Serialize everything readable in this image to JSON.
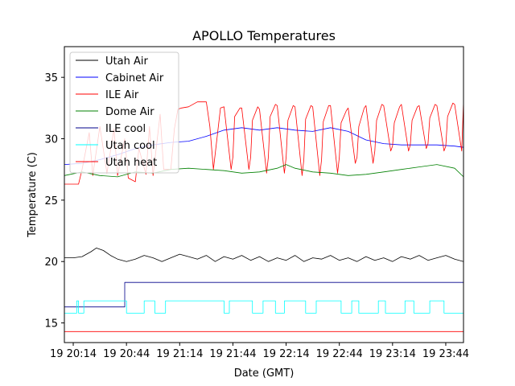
{
  "chart_data": {
    "type": "line",
    "title": "APOLLO Temperatures",
    "xlabel": "Date (GMT)",
    "ylabel": "Temperature (C)",
    "xlim": [
      0,
      225
    ],
    "ylim": [
      13.4,
      37.5
    ],
    "x_ticks": [
      {
        "value": 5,
        "label": "19 20:14"
      },
      {
        "value": 35,
        "label": "19 20:44"
      },
      {
        "value": 65,
        "label": "19 21:14"
      },
      {
        "value": 95,
        "label": "19 21:44"
      },
      {
        "value": 125,
        "label": "19 22:14"
      },
      {
        "value": 155,
        "label": "19 22:44"
      },
      {
        "value": 185,
        "label": "19 23:14"
      },
      {
        "value": 215,
        "label": "19 23:44"
      }
    ],
    "y_ticks": [
      {
        "value": 15,
        "label": "15"
      },
      {
        "value": 20,
        "label": "20"
      },
      {
        "value": 25,
        "label": "25"
      },
      {
        "value": 30,
        "label": "30"
      },
      {
        "value": 35,
        "label": "35"
      }
    ],
    "legend_position": "top-left",
    "series": [
      {
        "name": "Utah Air",
        "color": "#000000",
        "x": [
          0,
          5,
          10,
          15,
          18,
          22,
          26,
          30,
          35,
          40,
          45,
          50,
          55,
          60,
          65,
          70,
          75,
          80,
          85,
          90,
          95,
          100,
          105,
          110,
          115,
          120,
          125,
          130,
          135,
          140,
          145,
          150,
          155,
          160,
          165,
          170,
          175,
          180,
          185,
          190,
          195,
          200,
          205,
          210,
          215,
          220,
          225
        ],
        "values": [
          20.3,
          20.3,
          20.4,
          20.8,
          21.1,
          20.9,
          20.5,
          20.2,
          20.0,
          20.2,
          20.5,
          20.3,
          20.0,
          20.3,
          20.6,
          20.4,
          20.2,
          20.5,
          20.0,
          20.4,
          20.2,
          20.5,
          20.1,
          20.4,
          20.0,
          20.3,
          20.1,
          20.5,
          20.0,
          20.3,
          20.2,
          20.5,
          20.1,
          20.3,
          20.0,
          20.4,
          20.1,
          20.3,
          20.0,
          20.4,
          20.2,
          20.5,
          20.1,
          20.3,
          20.5,
          20.2,
          20.0
        ]
      },
      {
        "name": "Cabinet Air",
        "color": "#0000ff",
        "x": [
          0,
          10,
          20,
          30,
          40,
          50,
          60,
          70,
          80,
          90,
          100,
          110,
          120,
          130,
          140,
          150,
          160,
          170,
          180,
          190,
          200,
          210,
          220,
          225
        ],
        "values": [
          27.9,
          28.0,
          28.3,
          28.7,
          29.2,
          29.5,
          29.7,
          29.8,
          30.2,
          30.7,
          30.9,
          30.7,
          30.9,
          30.7,
          30.6,
          30.9,
          30.6,
          29.9,
          29.6,
          29.5,
          29.5,
          29.5,
          29.4,
          29.3
        ]
      },
      {
        "name": "ILE Air",
        "color": "#ff0000",
        "x": [
          0,
          8,
          10,
          14,
          16,
          20,
          24,
          28,
          30,
          34,
          36,
          40,
          42,
          46,
          48,
          50,
          54,
          56,
          60,
          62,
          64,
          66,
          70,
          75,
          80,
          82,
          84,
          88,
          90,
          94,
          95,
          96,
          99,
          100,
          104,
          105,
          106,
          109,
          110,
          114,
          115,
          116,
          119,
          120,
          124,
          125,
          126,
          129,
          130,
          134,
          135,
          136,
          139,
          140,
          144,
          145,
          146,
          149,
          150,
          154,
          155,
          156,
          159,
          160,
          164,
          165,
          166,
          169,
          170,
          174,
          175,
          176,
          179,
          180,
          184,
          185,
          186,
          189,
          190,
          194,
          195,
          196,
          199,
          200,
          204,
          205,
          206,
          209,
          210,
          214,
          215,
          216,
          219,
          220,
          224,
          225
        ],
        "values": [
          26.3,
          26.3,
          27.5,
          30.5,
          27.0,
          31.0,
          27.2,
          30.8,
          27.0,
          30.0,
          26.8,
          26.5,
          29.2,
          27.1,
          31.0,
          27.0,
          32.0,
          27.5,
          27.5,
          30.8,
          32.4,
          32.5,
          32.6,
          33.0,
          33.0,
          31.0,
          27.5,
          32.5,
          32.6,
          27.5,
          28.5,
          31.8,
          32.5,
          32.5,
          27.5,
          28.5,
          31.5,
          32.6,
          32.4,
          27.2,
          28.5,
          31.8,
          32.8,
          32.7,
          27.2,
          28.5,
          31.5,
          32.7,
          32.6,
          27.0,
          28.3,
          31.6,
          32.7,
          32.6,
          27.0,
          28.3,
          31.4,
          32.7,
          32.7,
          27.2,
          28.5,
          31.3,
          32.3,
          32.5,
          28.0,
          28.5,
          31.0,
          32.5,
          32.7,
          28.0,
          29.0,
          31.5,
          32.8,
          32.7,
          29.0,
          29.4,
          31.3,
          32.6,
          32.8,
          29.0,
          29.5,
          31.5,
          32.6,
          32.7,
          29.2,
          29.6,
          31.7,
          32.8,
          32.7,
          29.0,
          29.4,
          31.8,
          32.9,
          32.8,
          29.0,
          33.0
        ]
      },
      {
        "name": "Dome Air",
        "color": "#008000",
        "x": [
          0,
          10,
          20,
          30,
          40,
          50,
          60,
          70,
          80,
          90,
          100,
          110,
          120,
          125,
          130,
          140,
          150,
          160,
          170,
          180,
          190,
          200,
          210,
          220,
          225
        ],
        "values": [
          27.0,
          27.3,
          27.0,
          26.9,
          27.3,
          27.2,
          27.5,
          27.6,
          27.5,
          27.4,
          27.2,
          27.3,
          27.6,
          27.9,
          27.6,
          27.3,
          27.2,
          27.0,
          27.1,
          27.3,
          27.5,
          27.7,
          27.9,
          27.6,
          26.9
        ]
      },
      {
        "name": "ILE cool",
        "color": "#00008b",
        "x": [
          0,
          34,
          34,
          225
        ],
        "values": [
          16.3,
          16.3,
          18.3,
          18.3
        ]
      },
      {
        "name": "Utah cool",
        "color": "#00ffff",
        "x": [
          0,
          7,
          7,
          8,
          8,
          11,
          11,
          35,
          35,
          36,
          36,
          45,
          45,
          51,
          51,
          57,
          57,
          90,
          90,
          93,
          93,
          106,
          106,
          107,
          107,
          112,
          112,
          119,
          119,
          124,
          124,
          136,
          136,
          142,
          142,
          156,
          156,
          162,
          162,
          166,
          166,
          177,
          177,
          181,
          181,
          192,
          192,
          197,
          197,
          206,
          206,
          214,
          214,
          225
        ],
        "values": [
          15.8,
          15.8,
          16.8,
          16.8,
          15.8,
          15.8,
          16.8,
          16.8,
          15.8,
          15.8,
          15.8,
          15.8,
          16.8,
          16.8,
          15.8,
          15.8,
          16.8,
          16.8,
          15.8,
          15.8,
          16.8,
          16.8,
          15.8,
          15.8,
          15.8,
          15.8,
          16.8,
          16.8,
          15.8,
          15.8,
          16.8,
          16.8,
          15.8,
          15.8,
          16.8,
          16.8,
          15.8,
          15.8,
          16.8,
          16.8,
          15.8,
          15.8,
          16.8,
          16.8,
          15.8,
          15.8,
          16.8,
          16.8,
          15.8,
          15.8,
          16.8,
          16.8,
          15.8,
          15.8
        ]
      },
      {
        "name": "Utah heat",
        "color": "#ff0000",
        "x": [
          0,
          225
        ],
        "values": [
          14.3,
          14.3
        ]
      }
    ]
  }
}
